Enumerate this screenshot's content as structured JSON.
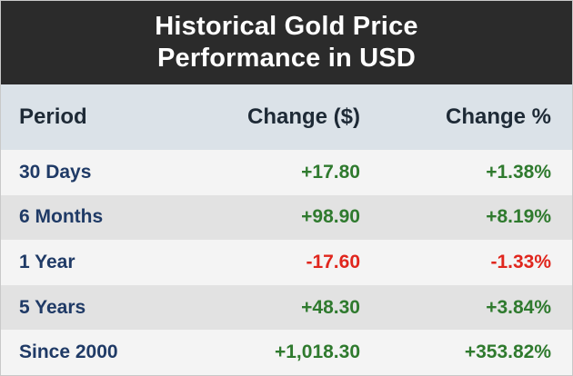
{
  "title": {
    "line1": "Historical Gold Price",
    "line2": "Performance in USD"
  },
  "columns": {
    "period": "Period",
    "change_usd": "Change ($)",
    "change_pct": "Change %"
  },
  "rows": [
    {
      "period": "30 Days",
      "change_usd": "+17.80",
      "change_pct": "+1.38%",
      "direction": "up"
    },
    {
      "period": "6 Months",
      "change_usd": "+98.90",
      "change_pct": "+8.19%",
      "direction": "up"
    },
    {
      "period": "1 Year",
      "change_usd": "-17.60",
      "change_pct": "-1.33%",
      "direction": "down"
    },
    {
      "period": "5 Years",
      "change_usd": "+48.30",
      "change_pct": "+3.84%",
      "direction": "up"
    },
    {
      "period": "Since 2000",
      "change_usd": "+1,018.30",
      "change_pct": "+353.82%",
      "direction": "up"
    }
  ],
  "colors": {
    "header_bg": "#2b2b2b",
    "column_header_bg": "#dbe2e8",
    "period_text": "#1f3a66",
    "positive": "#2f7a2e",
    "negative": "#e0261d"
  }
}
